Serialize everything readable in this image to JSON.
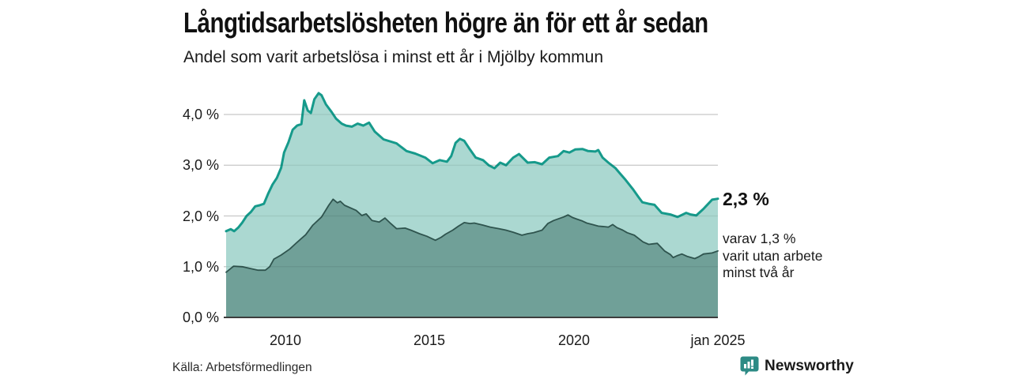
{
  "header": {
    "title": "Långtidsarbetslösheten högre än för ett år sedan",
    "subtitle": "Andel som varit arbetslösa i minst ett år i Mjölby kommun"
  },
  "annotations": {
    "total_label": "2,3 %",
    "secondary_lines": [
      "varav 1,3 %",
      "varit utan arbete",
      "minst två år"
    ]
  },
  "footer": {
    "source": "Källa: Arbetsförmedlingen",
    "brand_name": "Newsworthy"
  },
  "colors": {
    "title_text": "#111111",
    "body_text": "#1a1a1a",
    "grid": "#d9d9d9",
    "grid_overlay": "rgba(0,0,0,0.08)",
    "axis": "#3d3d3d",
    "brand_teal": "#2d8b85"
  },
  "chart_data": {
    "type": "area",
    "title": "Långtidsarbetslösheten högre än för ett år sedan",
    "subtitle": "Andel som varit arbetslösa i minst ett år i Mjölby kommun",
    "xlabel": "",
    "ylabel": "%",
    "x_domain": [
      2007.94,
      2025.0
    ],
    "ylim": [
      0,
      4.6
    ],
    "grid": true,
    "legend_position": "right-annotations",
    "y_ticks": [
      {
        "label": "0,0 %",
        "value": 0
      },
      {
        "label": "1,0 %",
        "value": 1
      },
      {
        "label": "2,0 %",
        "value": 2
      },
      {
        "label": "3,0 %",
        "value": 3
      },
      {
        "label": "4,0 %",
        "value": 4
      }
    ],
    "x_ticks": [
      {
        "label": "2010",
        "value": 2010
      },
      {
        "label": "2015",
        "value": 2015
      },
      {
        "label": "2020",
        "value": 2020
      },
      {
        "label": "jan 2025",
        "value": 2025
      }
    ],
    "series": [
      {
        "name": "Andel arbetslösa minst ett år",
        "end_value_label": "2,3 %",
        "fill": "#abd8d1",
        "stroke": "#169a8b",
        "stroke_width": 3,
        "points": [
          [
            2007.94,
            1.7
          ],
          [
            2008.1,
            1.74
          ],
          [
            2008.22,
            1.7
          ],
          [
            2008.36,
            1.77
          ],
          [
            2008.5,
            1.87
          ],
          [
            2008.65,
            2.0
          ],
          [
            2008.8,
            2.08
          ],
          [
            2008.95,
            2.19
          ],
          [
            2009.1,
            2.21
          ],
          [
            2009.25,
            2.24
          ],
          [
            2009.4,
            2.44
          ],
          [
            2009.55,
            2.62
          ],
          [
            2009.7,
            2.75
          ],
          [
            2009.85,
            2.95
          ],
          [
            2009.95,
            3.25
          ],
          [
            2010.1,
            3.45
          ],
          [
            2010.25,
            3.7
          ],
          [
            2010.4,
            3.78
          ],
          [
            2010.55,
            3.81
          ],
          [
            2010.65,
            4.28
          ],
          [
            2010.77,
            4.08
          ],
          [
            2010.88,
            4.03
          ],
          [
            2011.0,
            4.3
          ],
          [
            2011.15,
            4.42
          ],
          [
            2011.25,
            4.38
          ],
          [
            2011.4,
            4.2
          ],
          [
            2011.6,
            4.05
          ],
          [
            2011.75,
            3.92
          ],
          [
            2011.95,
            3.82
          ],
          [
            2012.1,
            3.78
          ],
          [
            2012.3,
            3.76
          ],
          [
            2012.5,
            3.82
          ],
          [
            2012.7,
            3.78
          ],
          [
            2012.9,
            3.84
          ],
          [
            2013.1,
            3.66
          ],
          [
            2013.4,
            3.51
          ],
          [
            2013.85,
            3.43
          ],
          [
            2014.2,
            3.28
          ],
          [
            2014.5,
            3.23
          ],
          [
            2014.85,
            3.15
          ],
          [
            2015.1,
            3.04
          ],
          [
            2015.35,
            3.1
          ],
          [
            2015.6,
            3.07
          ],
          [
            2015.75,
            3.18
          ],
          [
            2015.9,
            3.44
          ],
          [
            2016.05,
            3.52
          ],
          [
            2016.2,
            3.48
          ],
          [
            2016.4,
            3.31
          ],
          [
            2016.6,
            3.15
          ],
          [
            2016.85,
            3.1
          ],
          [
            2017.05,
            3.0
          ],
          [
            2017.25,
            2.94
          ],
          [
            2017.45,
            3.05
          ],
          [
            2017.65,
            3.0
          ],
          [
            2017.9,
            3.15
          ],
          [
            2018.1,
            3.22
          ],
          [
            2018.4,
            3.05
          ],
          [
            2018.65,
            3.06
          ],
          [
            2018.9,
            3.02
          ],
          [
            2019.15,
            3.15
          ],
          [
            2019.45,
            3.18
          ],
          [
            2019.65,
            3.28
          ],
          [
            2019.85,
            3.25
          ],
          [
            2020.05,
            3.31
          ],
          [
            2020.3,
            3.32
          ],
          [
            2020.5,
            3.28
          ],
          [
            2020.75,
            3.27
          ],
          [
            2020.85,
            3.3
          ],
          [
            2021.0,
            3.15
          ],
          [
            2021.2,
            3.05
          ],
          [
            2021.45,
            2.94
          ],
          [
            2021.6,
            2.84
          ],
          [
            2021.8,
            2.71
          ],
          [
            2022.05,
            2.53
          ],
          [
            2022.25,
            2.37
          ],
          [
            2022.38,
            2.27
          ],
          [
            2022.6,
            2.24
          ],
          [
            2022.8,
            2.22
          ],
          [
            2023.05,
            2.06
          ],
          [
            2023.35,
            2.03
          ],
          [
            2023.6,
            1.98
          ],
          [
            2023.9,
            2.06
          ],
          [
            2024.05,
            2.03
          ],
          [
            2024.25,
            2.01
          ],
          [
            2024.5,
            2.14
          ],
          [
            2024.8,
            2.32
          ],
          [
            2025.0,
            2.34
          ]
        ]
      },
      {
        "name": "varav utan arbete minst två år",
        "end_value_label": "1,3 %",
        "fill": "#70a098",
        "stroke": "#2f544e",
        "stroke_width": 1.8,
        "points": [
          [
            2007.94,
            0.89
          ],
          [
            2008.2,
            1.01
          ],
          [
            2008.5,
            1.0
          ],
          [
            2008.8,
            0.96
          ],
          [
            2009.05,
            0.93
          ],
          [
            2009.3,
            0.93
          ],
          [
            2009.45,
            1.0
          ],
          [
            2009.6,
            1.15
          ],
          [
            2009.85,
            1.23
          ],
          [
            2010.15,
            1.35
          ],
          [
            2010.4,
            1.48
          ],
          [
            2010.7,
            1.63
          ],
          [
            2010.95,
            1.82
          ],
          [
            2011.25,
            1.98
          ],
          [
            2011.5,
            2.21
          ],
          [
            2011.65,
            2.33
          ],
          [
            2011.8,
            2.26
          ],
          [
            2011.9,
            2.29
          ],
          [
            2012.05,
            2.21
          ],
          [
            2012.45,
            2.11
          ],
          [
            2012.65,
            2.01
          ],
          [
            2012.8,
            2.04
          ],
          [
            2013.0,
            1.91
          ],
          [
            2013.25,
            1.88
          ],
          [
            2013.45,
            1.96
          ],
          [
            2013.65,
            1.85
          ],
          [
            2013.85,
            1.75
          ],
          [
            2014.15,
            1.76
          ],
          [
            2014.35,
            1.72
          ],
          [
            2014.65,
            1.65
          ],
          [
            2014.9,
            1.6
          ],
          [
            2015.2,
            1.52
          ],
          [
            2015.4,
            1.58
          ],
          [
            2015.55,
            1.64
          ],
          [
            2015.8,
            1.72
          ],
          [
            2016.0,
            1.8
          ],
          [
            2016.2,
            1.87
          ],
          [
            2016.4,
            1.85
          ],
          [
            2016.55,
            1.86
          ],
          [
            2016.85,
            1.82
          ],
          [
            2017.1,
            1.78
          ],
          [
            2017.4,
            1.75
          ],
          [
            2017.65,
            1.72
          ],
          [
            2017.9,
            1.68
          ],
          [
            2018.2,
            1.62
          ],
          [
            2018.4,
            1.65
          ],
          [
            2018.6,
            1.67
          ],
          [
            2018.9,
            1.72
          ],
          [
            2019.1,
            1.85
          ],
          [
            2019.3,
            1.91
          ],
          [
            2019.5,
            1.95
          ],
          [
            2019.65,
            1.98
          ],
          [
            2019.8,
            2.02
          ],
          [
            2019.95,
            1.97
          ],
          [
            2020.1,
            1.94
          ],
          [
            2020.3,
            1.9
          ],
          [
            2020.45,
            1.86
          ],
          [
            2020.65,
            1.83
          ],
          [
            2020.85,
            1.8
          ],
          [
            2021.05,
            1.79
          ],
          [
            2021.2,
            1.78
          ],
          [
            2021.35,
            1.83
          ],
          [
            2021.5,
            1.77
          ],
          [
            2021.7,
            1.72
          ],
          [
            2021.85,
            1.67
          ],
          [
            2022.1,
            1.62
          ],
          [
            2022.4,
            1.49
          ],
          [
            2022.6,
            1.44
          ],
          [
            2022.75,
            1.45
          ],
          [
            2022.9,
            1.46
          ],
          [
            2023.15,
            1.31
          ],
          [
            2023.35,
            1.24
          ],
          [
            2023.45,
            1.18
          ],
          [
            2023.6,
            1.22
          ],
          [
            2023.75,
            1.25
          ],
          [
            2023.95,
            1.2
          ],
          [
            2024.2,
            1.16
          ],
          [
            2024.35,
            1.2
          ],
          [
            2024.5,
            1.25
          ],
          [
            2024.8,
            1.27
          ],
          [
            2025.0,
            1.31
          ]
        ]
      }
    ]
  }
}
